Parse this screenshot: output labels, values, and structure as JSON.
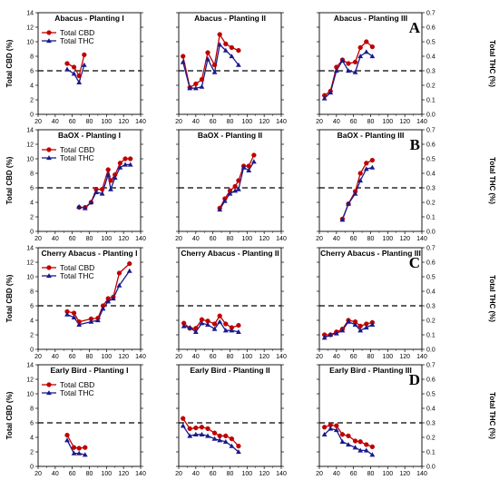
{
  "figure": {
    "row_labels": [
      "A",
      "B",
      "C",
      "D"
    ],
    "left_axis_label": "Total CBD (%)",
    "right_axis_label": "Total THC (%)",
    "colors": {
      "cbd": "#c00000",
      "thc": "#1a1a8c",
      "threshold": "#000000"
    }
  },
  "chart_data": [
    {
      "type": "line",
      "title": "Abacus - Planting I",
      "legend": [
        "Total CBD",
        "Total THC"
      ],
      "series": [
        {
          "name": "Total CBD",
          "x": [
            54,
            62,
            68,
            74
          ],
          "y": [
            7.0,
            6.5,
            5.3,
            8.2
          ]
        },
        {
          "name": "Total THC",
          "x": [
            54,
            62,
            68,
            74
          ],
          "y": [
            0.31,
            0.28,
            0.22,
            0.34
          ]
        }
      ]
    },
    {
      "type": "line",
      "title": "Abacus - Planting II",
      "series": [
        {
          "name": "Total CBD",
          "x": [
            25,
            33,
            40,
            47,
            54,
            62,
            68,
            75,
            82,
            90
          ],
          "y": [
            8.0,
            3.7,
            4.2,
            4.8,
            8.5,
            6.8,
            11.0,
            9.7,
            9.2,
            8.8
          ]
        },
        {
          "name": "Total THC",
          "x": [
            25,
            33,
            40,
            47,
            54,
            62,
            68,
            75,
            82,
            90
          ],
          "y": [
            0.36,
            0.18,
            0.18,
            0.19,
            0.38,
            0.29,
            0.48,
            0.44,
            0.4,
            0.34
          ]
        }
      ]
    },
    {
      "type": "line",
      "title": "Abacus - Planting III",
      "series": [
        {
          "name": "Total CBD",
          "x": [
            26,
            33,
            40,
            47,
            54,
            62,
            68,
            75,
            82
          ],
          "y": [
            2.6,
            3.2,
            6.5,
            7.5,
            7.0,
            7.2,
            9.2,
            10.0,
            9.3
          ]
        },
        {
          "name": "Total THC",
          "x": [
            26,
            33,
            40,
            47,
            54,
            62,
            68,
            75,
            82
          ],
          "y": [
            0.11,
            0.15,
            0.3,
            0.37,
            0.3,
            0.29,
            0.4,
            0.43,
            0.4
          ]
        }
      ]
    },
    {
      "type": "line",
      "title": "BaOX - Planting I",
      "legend": [
        "Total CBD",
        "Total THC"
      ],
      "series": [
        {
          "name": "Total CBD",
          "x": [
            68,
            75,
            82,
            88,
            95,
            102,
            105,
            110,
            116,
            122,
            128
          ],
          "y": [
            3.3,
            3.3,
            4.0,
            5.8,
            5.8,
            8.5,
            7.0,
            7.8,
            9.4,
            10.0,
            10.0
          ]
        },
        {
          "name": "Total THC",
          "x": [
            68,
            75,
            82,
            88,
            95,
            102,
            105,
            110,
            116,
            122,
            128
          ],
          "y": [
            0.17,
            0.16,
            0.2,
            0.27,
            0.26,
            0.39,
            0.29,
            0.37,
            0.44,
            0.46,
            0.46
          ]
        }
      ]
    },
    {
      "type": "line",
      "title": "BaOX - Planting II",
      "series": [
        {
          "name": "Total CBD",
          "x": [
            68,
            74,
            80,
            86,
            90,
            96,
            102,
            108
          ],
          "y": [
            3.2,
            4.5,
            5.6,
            6.2,
            7.0,
            9.0,
            9.0,
            10.5
          ]
        },
        {
          "name": "Total THC",
          "x": [
            68,
            74,
            80,
            86,
            90,
            96,
            102,
            108
          ],
          "y": [
            0.15,
            0.21,
            0.26,
            0.28,
            0.29,
            0.44,
            0.42,
            0.48
          ]
        }
      ]
    },
    {
      "type": "line",
      "title": "BaOX - Planting III",
      "series": [
        {
          "name": "Total CBD",
          "x": [
            47,
            54,
            62,
            68,
            75,
            82
          ],
          "y": [
            1.7,
            3.8,
            5.5,
            8.0,
            9.4,
            9.8
          ]
        },
        {
          "name": "Total THC",
          "x": [
            47,
            54,
            62,
            68,
            75,
            82
          ],
          "y": [
            0.08,
            0.19,
            0.26,
            0.35,
            0.43,
            0.44
          ]
        }
      ]
    },
    {
      "type": "line",
      "title": "Cherry Abacus - Planting I",
      "legend": [
        "Total CBD",
        "Total THC"
      ],
      "series": [
        {
          "name": "Total CBD",
          "x": [
            54,
            62,
            68,
            82,
            90,
            96,
            102,
            108,
            115,
            127
          ],
          "y": [
            5.2,
            5.0,
            3.8,
            4.2,
            4.3,
            6.0,
            7.0,
            7.2,
            10.5,
            11.8
          ]
        },
        {
          "name": "Total THC",
          "x": [
            54,
            62,
            68,
            82,
            90,
            96,
            102,
            108,
            115,
            127
          ],
          "y": [
            0.24,
            0.22,
            0.17,
            0.19,
            0.2,
            0.28,
            0.33,
            0.35,
            0.44,
            0.54
          ]
        }
      ]
    },
    {
      "type": "line",
      "title": "Cherry Abacus - Planting II",
      "series": [
        {
          "name": "Total CBD",
          "x": [
            26,
            33,
            40,
            47,
            54,
            62,
            68,
            75,
            82,
            90
          ],
          "y": [
            3.6,
            2.9,
            2.9,
            4.1,
            3.9,
            3.5,
            4.6,
            3.5,
            3.0,
            3.3
          ]
        },
        {
          "name": "Total THC",
          "x": [
            26,
            33,
            40,
            47,
            54,
            62,
            68,
            75,
            82,
            90
          ],
          "y": [
            0.16,
            0.15,
            0.12,
            0.18,
            0.17,
            0.14,
            0.19,
            0.13,
            0.13,
            0.12
          ]
        }
      ]
    },
    {
      "type": "line",
      "title": "Cherry Abacus - Planting III",
      "series": [
        {
          "name": "Total CBD",
          "x": [
            26,
            33,
            40,
            47,
            54,
            62,
            68,
            75,
            82
          ],
          "y": [
            2.0,
            2.0,
            2.4,
            2.8,
            4.0,
            3.8,
            3.2,
            3.5,
            3.7
          ]
        },
        {
          "name": "Total THC",
          "x": [
            26,
            33,
            40,
            47,
            54,
            62,
            68,
            75,
            82
          ],
          "y": [
            0.08,
            0.1,
            0.11,
            0.13,
            0.19,
            0.17,
            0.13,
            0.15,
            0.17
          ]
        }
      ]
    },
    {
      "type": "line",
      "title": "Early Bird - Planting I",
      "legend": [
        "Total CBD",
        "Total THC"
      ],
      "series": [
        {
          "name": "Total CBD",
          "x": [
            54,
            62,
            68,
            75
          ],
          "y": [
            4.3,
            2.6,
            2.5,
            2.6
          ]
        },
        {
          "name": "Total THC",
          "x": [
            54,
            62,
            68,
            75
          ],
          "y": [
            0.18,
            0.09,
            0.09,
            0.08
          ]
        }
      ]
    },
    {
      "type": "line",
      "title": "Early Bird - Planting II",
      "series": [
        {
          "name": "Total CBD",
          "x": [
            25,
            33,
            40,
            47,
            54,
            62,
            68,
            75,
            82,
            90
          ],
          "y": [
            6.6,
            5.2,
            5.3,
            5.4,
            5.2,
            4.6,
            4.2,
            4.2,
            3.8,
            2.8
          ]
        },
        {
          "name": "Total THC",
          "x": [
            25,
            33,
            40,
            47,
            54,
            62,
            68,
            75,
            82,
            90
          ],
          "y": [
            0.28,
            0.21,
            0.22,
            0.22,
            0.21,
            0.19,
            0.18,
            0.17,
            0.14,
            0.1
          ]
        }
      ]
    },
    {
      "type": "line",
      "title": "Early Bird - Planting III",
      "series": [
        {
          "name": "Total CBD",
          "x": [
            26,
            33,
            40,
            47,
            54,
            62,
            68,
            75,
            82
          ],
          "y": [
            5.4,
            5.7,
            5.6,
            4.4,
            4.2,
            3.5,
            3.4,
            3.0,
            2.7
          ]
        },
        {
          "name": "Total THC",
          "x": [
            26,
            33,
            40,
            47,
            54,
            62,
            68,
            75,
            82
          ],
          "y": [
            0.22,
            0.26,
            0.25,
            0.17,
            0.15,
            0.13,
            0.11,
            0.11,
            0.08
          ]
        }
      ]
    }
  ],
  "axes": {
    "x": {
      "min": 20,
      "max": 140,
      "ticks": [
        20,
        40,
        60,
        80,
        100,
        120,
        140
      ],
      "minor_ticks": [
        30,
        50,
        70,
        90,
        110,
        130
      ]
    },
    "y_cbd": {
      "min": 0,
      "max": 14,
      "ticks": [
        0,
        2,
        4,
        6,
        8,
        10,
        12,
        14
      ]
    },
    "y_thc": {
      "min": 0,
      "max": 0.7,
      "ticks": [
        "0.0",
        "0.1",
        "0.2",
        "0.3",
        "0.4",
        "0.5",
        "0.6",
        "0.7"
      ]
    },
    "threshold": {
      "cbd": 6,
      "thc": 0.3
    }
  }
}
